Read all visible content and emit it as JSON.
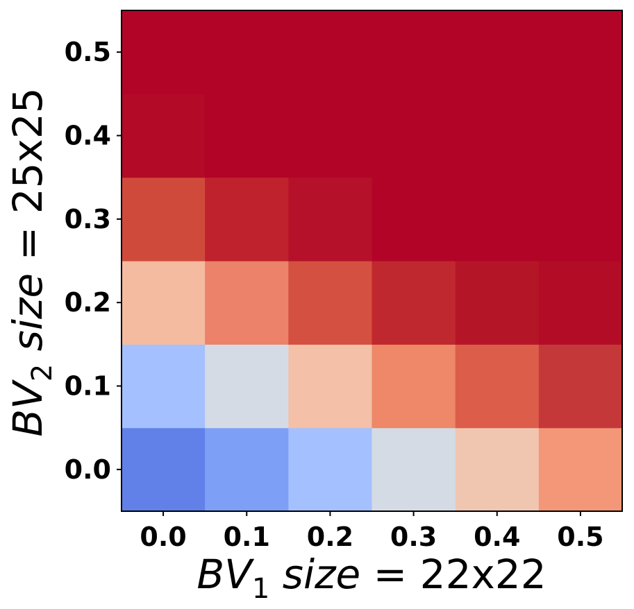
{
  "chart_data": {
    "type": "heatmap",
    "x_ticks": [
      "0.0",
      "0.1",
      "0.2",
      "0.3",
      "0.4",
      "0.5"
    ],
    "y_ticks": [
      "0.0",
      "0.1",
      "0.2",
      "0.3",
      "0.4",
      "0.5"
    ],
    "x_values": [
      0.0,
      0.1,
      0.2,
      0.3,
      0.4,
      0.5
    ],
    "y_values": [
      0.0,
      0.1,
      0.2,
      0.3,
      0.4,
      0.5
    ],
    "xlabel": {
      "prefix": "BV",
      "subscript": "1",
      "middle": " size",
      "suffix": " = 22x22"
    },
    "ylabel": {
      "prefix": "BV",
      "subscript": "2",
      "middle": " size",
      "suffix": " = 25x25"
    },
    "colormap": "coolwarm",
    "legend": "none",
    "grid": false,
    "rows_bottom_to_top": [
      [
        "#6181e9",
        "#7d9ff6",
        "#a4c0fe",
        "#d5dbe5",
        "#f1c6b1",
        "#f39778"
      ],
      [
        "#a4c0fe",
        "#d5dbe5",
        "#f4c0a7",
        "#ee8869",
        "#dc5d4a",
        "#c5383a"
      ],
      [
        "#f4bba0",
        "#eb8269",
        "#d45040",
        "#c0282f",
        "#b51627",
        "#b20c26"
      ],
      [
        "#d04a3b",
        "#bf222d",
        "#b5112a",
        "#b20427",
        "#b20427",
        "#b20427"
      ],
      [
        "#b30a27",
        "#b20427",
        "#b20427",
        "#b20427",
        "#b20427",
        "#b20427"
      ],
      [
        "#b20427",
        "#b20427",
        "#b20427",
        "#b20427",
        "#b20427",
        "#b20427"
      ]
    ]
  }
}
